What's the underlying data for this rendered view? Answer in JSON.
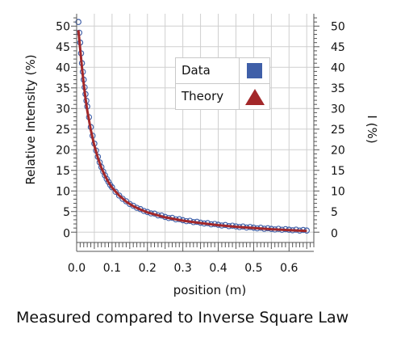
{
  "colors": {
    "data": "#3f5fa8",
    "theory": "#a3282a",
    "grid": "#cfcfcf",
    "axis": "#555555"
  },
  "chart_data": {
    "type": "scatter",
    "caption": "Measured compared to Inverse Square Law",
    "xlabel": "position (m)",
    "ylabel": "Relative Intensity (%)",
    "y2label": "I (%)",
    "xlim": [
      0.0,
      0.67
    ],
    "ylim": [
      -2.5,
      53
    ],
    "x_ticks": [
      "0.0",
      "0.1",
      "0.2",
      "0.3",
      "0.4",
      "0.5",
      "0.6"
    ],
    "x_tick_values": [
      0.0,
      0.1,
      0.2,
      0.3,
      0.4,
      0.5,
      0.6
    ],
    "y_ticks": [
      "50",
      "45",
      "40",
      "35",
      "30",
      "25",
      "20",
      "15",
      "10",
      "5",
      "0"
    ],
    "y_tick_values": [
      50,
      45,
      40,
      35,
      30,
      25,
      20,
      15,
      10,
      5,
      0
    ],
    "grid": true,
    "legend": {
      "position": "top-right",
      "entries": [
        {
          "label": "Data",
          "marker": "square",
          "color": "#3f5fa8"
        },
        {
          "label": "Theory",
          "marker": "triangle",
          "color": "#a3282a"
        }
      ]
    },
    "series": [
      {
        "name": "Data",
        "style": "open-circles",
        "x": [
          0.005,
          0.01,
          0.015,
          0.02,
          0.025,
          0.03,
          0.04,
          0.05,
          0.06,
          0.07,
          0.08,
          0.09,
          0.1,
          0.12,
          0.14,
          0.16,
          0.18,
          0.2,
          0.25,
          0.3,
          0.35,
          0.4,
          0.45,
          0.5,
          0.55,
          0.6,
          0.65
        ],
        "y": [
          51.0,
          46.0,
          41.0,
          37.0,
          33.5,
          30.5,
          25.5,
          21.5,
          18.3,
          15.8,
          13.8,
          12.2,
          10.9,
          8.9,
          7.5,
          6.4,
          5.6,
          4.9,
          3.7,
          2.9,
          2.3,
          1.8,
          1.4,
          1.1,
          0.8,
          0.6,
          0.4
        ]
      },
      {
        "name": "Theory",
        "style": "line",
        "x": [
          0.005,
          0.01,
          0.015,
          0.02,
          0.025,
          0.03,
          0.04,
          0.05,
          0.06,
          0.07,
          0.08,
          0.09,
          0.1,
          0.12,
          0.14,
          0.16,
          0.18,
          0.2,
          0.25,
          0.3,
          0.35,
          0.4,
          0.45,
          0.5,
          0.55,
          0.6,
          0.65
        ],
        "y": [
          49.0,
          44.5,
          40.0,
          36.0,
          32.5,
          29.5,
          24.8,
          21.0,
          18.0,
          15.6,
          13.7,
          12.1,
          10.8,
          8.9,
          7.4,
          6.3,
          5.5,
          4.8,
          3.6,
          2.8,
          2.2,
          1.7,
          1.3,
          1.0,
          0.7,
          0.5,
          0.3
        ]
      }
    ]
  }
}
